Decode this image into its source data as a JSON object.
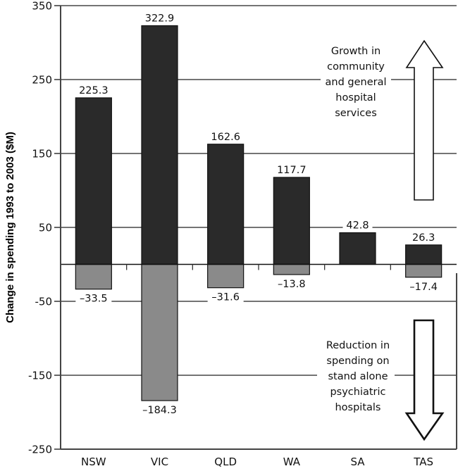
{
  "chart_data": {
    "type": "bar",
    "title": "",
    "xlabel": "",
    "ylabel": "Change in spending 1993 to 2003 ($M)",
    "ylim": [
      -250,
      350
    ],
    "yticks": [
      350,
      250,
      150,
      50,
      -50,
      -150,
      -250
    ],
    "grid": true,
    "categories": [
      "NSW",
      "VIC",
      "QLD",
      "WA",
      "SA",
      "TAS"
    ],
    "series": [
      {
        "name": "Growth in community and general hospital services",
        "color": "#2a2a2a",
        "values": [
          225.3,
          322.9,
          162.6,
          117.7,
          42.8,
          26.3
        ],
        "labels": [
          "225.3",
          "322.9",
          "162.6",
          "117.7",
          "42.8",
          "26.3"
        ]
      },
      {
        "name": "Reduction in spending on stand alone psychiatric hospitals",
        "color": "#8a8a8a",
        "values": [
          -33.5,
          -184.3,
          -31.6,
          -13.8,
          0,
          -17.4
        ],
        "labels": [
          "–33.5",
          "–184.3",
          "–31.6",
          "–13.8",
          "",
          "–17.4"
        ]
      }
    ],
    "annotations": {
      "growth": {
        "lines": [
          "Growth in",
          "community",
          "and general",
          "hospital",
          "services"
        ],
        "arrow": "up"
      },
      "reduction": {
        "lines": [
          "Reduction in",
          "spending on",
          "stand alone",
          "psychiatric",
          "hospitals"
        ],
        "arrow": "down"
      }
    }
  }
}
